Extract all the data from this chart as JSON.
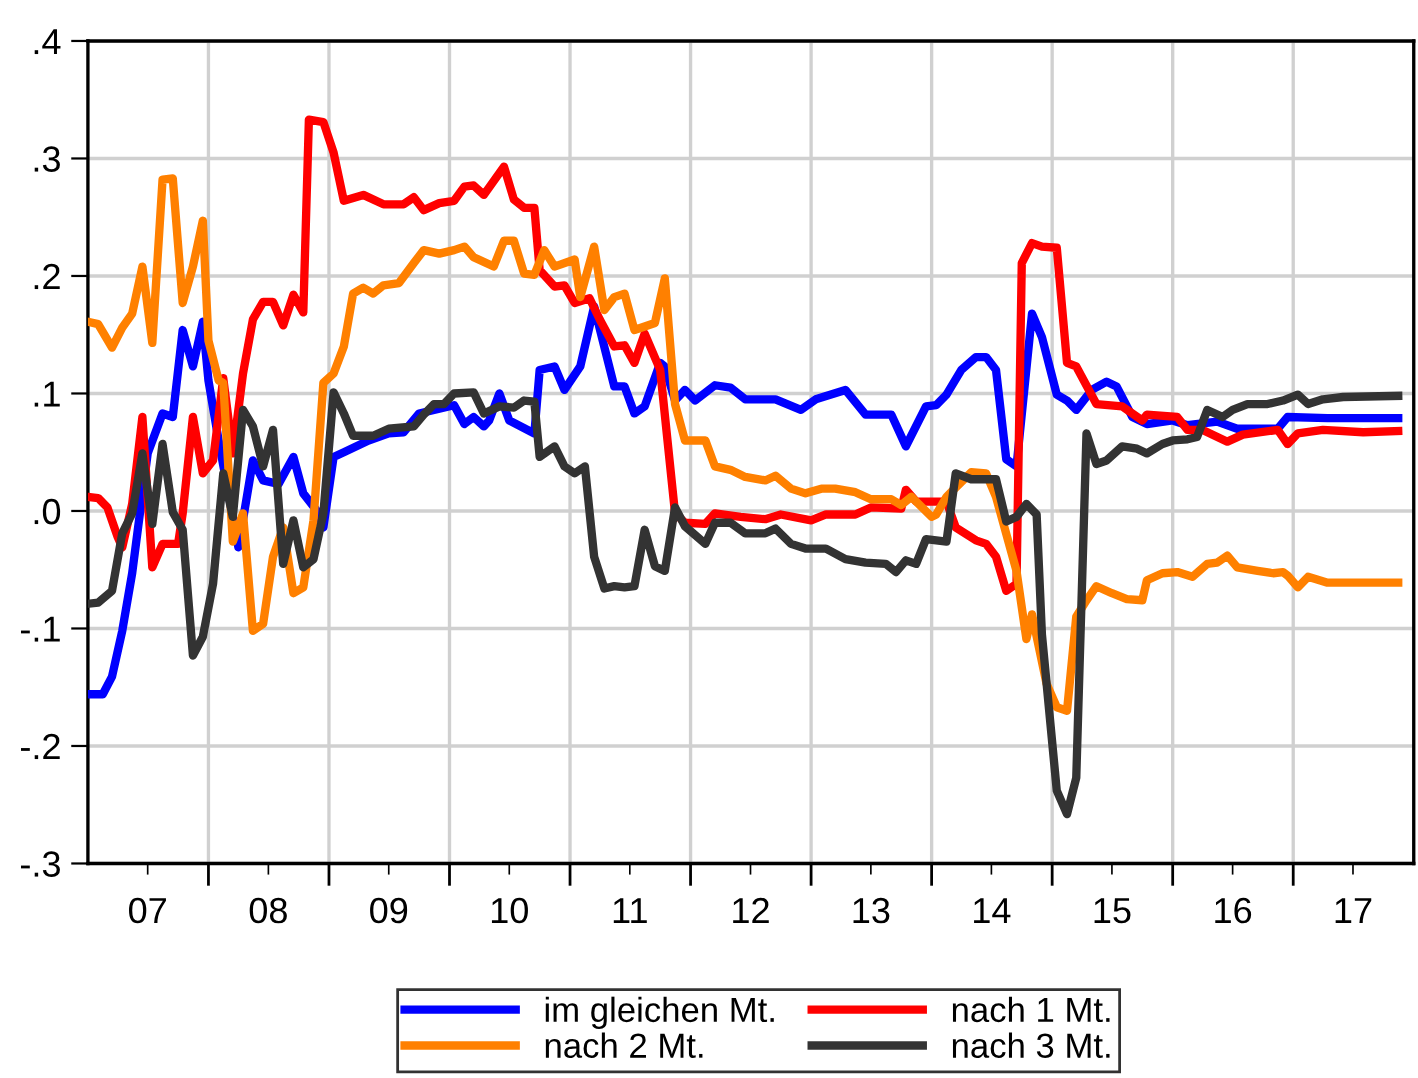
{
  "chart_data": {
    "type": "line",
    "xlim": [
      "2007-01-01",
      "2018-01-01"
    ],
    "ylim": [
      -0.3,
      0.4
    ],
    "xticks": [
      {
        "value": "2007-07-01",
        "label": "07"
      },
      {
        "value": "2008-01-01",
        "label": null
      },
      {
        "value": "2008-07-01",
        "label": "08"
      },
      {
        "value": "2009-01-01",
        "label": null
      },
      {
        "value": "2009-07-01",
        "label": "09"
      },
      {
        "value": "2010-01-01",
        "label": null
      },
      {
        "value": "2010-07-01",
        "label": "10"
      },
      {
        "value": "2011-01-01",
        "label": null
      },
      {
        "value": "2011-07-01",
        "label": "11"
      },
      {
        "value": "2012-01-01",
        "label": null
      },
      {
        "value": "2012-07-01",
        "label": "12"
      },
      {
        "value": "2013-01-01",
        "label": null
      },
      {
        "value": "2013-07-01",
        "label": "13"
      },
      {
        "value": "2014-01-01",
        "label": null
      },
      {
        "value": "2014-07-01",
        "label": "14"
      },
      {
        "value": "2015-01-01",
        "label": null
      },
      {
        "value": "2015-07-01",
        "label": "15"
      },
      {
        "value": "2016-01-01",
        "label": null
      },
      {
        "value": "2016-07-01",
        "label": "16"
      },
      {
        "value": "2017-01-01",
        "label": null
      },
      {
        "value": "2017-07-01",
        "label": "17"
      }
    ],
    "yticks": [
      {
        "value": -0.3,
        "label": "-.3"
      },
      {
        "value": -0.2,
        "label": "-.2"
      },
      {
        "value": -0.1,
        "label": "-.1"
      },
      {
        "value": 0,
        "label": ".0"
      },
      {
        "value": 0.1,
        "label": ".1"
      },
      {
        "value": 0.2,
        "label": ".2"
      },
      {
        "value": 0.3,
        "label": ".3"
      },
      {
        "value": 0.4,
        "label": ".4"
      }
    ],
    "grid": true,
    "legend": "bottom",
    "line_style": "solid",
    "marker": "none",
    "series": [
      {
        "name": "im gleichen Mt.",
        "color": "#0000ff",
        "x": [
          "2007-01-01",
          "2007-02-15",
          "2007-03-15",
          "2007-04-15",
          "2007-05-15",
          "2007-07-01",
          "2007-08-15",
          "2007-09-15",
          "2007-10-15",
          "2007-11-15",
          "2007-12-15",
          "2008-01-01",
          "2008-02-01",
          "2008-04-01",
          "2008-05-15",
          "2008-06-15",
          "2008-08-01",
          "2008-09-15",
          "2008-10-15",
          "2008-12-01",
          "2008-12-15",
          "2009-01-15",
          "2009-02-15",
          "2009-05-01",
          "2009-07-01",
          "2009-08-15",
          "2009-10-01",
          "2009-12-01",
          "2010-01-15",
          "2010-02-15",
          "2010-03-15",
          "2010-04-15",
          "2010-05-01",
          "2010-06-01",
          "2010-07-01",
          "2010-09-15",
          "2010-10-01",
          "2010-11-15",
          "2010-12-15",
          "2011-02-01",
          "2011-03-15",
          "2011-05-15",
          "2011-06-15",
          "2011-07-15",
          "2011-08-15",
          "2011-10-01",
          "2011-10-15",
          "2011-11-15",
          "2011-12-15",
          "2012-01-15",
          "2012-03-15",
          "2012-05-01",
          "2012-06-15",
          "2012-09-15",
          "2012-12-01",
          "2013-01-15",
          "2013-04-15",
          "2013-06-15",
          "2013-09-01",
          "2013-10-15",
          "2013-12-15",
          "2014-01-15",
          "2014-02-15",
          "2014-04-01",
          "2014-05-15",
          "2014-06-15",
          "2014-07-15",
          "2014-08-15",
          "2014-09-15",
          "2014-11-01",
          "2014-12-01",
          "2015-01-15",
          "2015-02-15",
          "2015-03-15",
          "2015-05-01",
          "2015-06-15",
          "2015-07-15",
          "2015-09-01",
          "2015-10-15",
          "2016-01-01",
          "2016-02-15",
          "2016-05-15",
          "2016-07-15",
          "2016-11-15",
          "2016-12-15",
          "2017-04-15",
          "2017-11-15"
        ],
        "values": [
          -0.156,
          -0.156,
          -0.141,
          -0.102,
          -0.053,
          0.049,
          0.083,
          0.08,
          0.154,
          0.123,
          0.161,
          0.111,
          0.06,
          -0.031,
          0.043,
          0.026,
          0.023,
          0.046,
          0.015,
          -0.002,
          -0.014,
          0.046,
          0.05,
          0.06,
          0.066,
          0.067,
          0.083,
          0.087,
          0.09,
          0.074,
          0.08,
          0.072,
          0.077,
          0.1,
          0.077,
          0.066,
          0.12,
          0.123,
          0.103,
          0.123,
          0.174,
          0.106,
          0.106,
          0.083,
          0.089,
          0.126,
          0.123,
          0.094,
          0.103,
          0.094,
          0.107,
          0.105,
          0.095,
          0.095,
          0.086,
          0.095,
          0.103,
          0.082,
          0.082,
          0.055,
          0.089,
          0.09,
          0.099,
          0.12,
          0.131,
          0.131,
          0.12,
          0.044,
          0.038,
          0.168,
          0.148,
          0.099,
          0.094,
          0.086,
          0.103,
          0.11,
          0.106,
          0.08,
          0.074,
          0.077,
          0.073,
          0.076,
          0.07,
          0.07,
          0.08,
          0.079,
          0.079
        ]
      },
      {
        "name": "nach 1 Mt.",
        "color": "#ff0000",
        "x": [
          "2007-01-01",
          "2007-02-01",
          "2007-03-01",
          "2007-04-01",
          "2007-04-15",
          "2007-05-15",
          "2007-06-15",
          "2007-07-15",
          "2007-08-15",
          "2007-10-01",
          "2007-10-15",
          "2007-11-15",
          "2007-12-15",
          "2008-01-15",
          "2008-02-15",
          "2008-03-15",
          "2008-04-15",
          "2008-05-15",
          "2008-06-15",
          "2008-07-15",
          "2008-08-15",
          "2008-09-15",
          "2008-10-15",
          "2008-11-01",
          "2008-12-15",
          "2009-01-15",
          "2009-02-15",
          "2009-04-15",
          "2009-06-15",
          "2009-08-15",
          "2009-09-15",
          "2009-10-15",
          "2009-12-01",
          "2010-01-15",
          "2010-02-15",
          "2010-03-15",
          "2010-04-15",
          "2010-06-15",
          "2010-07-15",
          "2010-08-15",
          "2010-09-15",
          "2010-10-01",
          "2010-11-15",
          "2010-12-15",
          "2011-01-15",
          "2011-03-01",
          "2011-04-01",
          "2011-05-15",
          "2011-06-15",
          "2011-07-15",
          "2011-08-15",
          "2011-10-01",
          "2011-11-15",
          "2011-12-15",
          "2012-02-15",
          "2012-03-15",
          "2012-06-01",
          "2012-08-15",
          "2012-10-01",
          "2013-01-01",
          "2013-02-15",
          "2013-05-15",
          "2013-07-01",
          "2013-10-01",
          "2013-10-15",
          "2013-11-15",
          "2014-01-15",
          "2014-02-15",
          "2014-03-15",
          "2014-05-15",
          "2014-06-15",
          "2014-07-15",
          "2014-08-15",
          "2014-09-15",
          "2014-10-01",
          "2014-11-01",
          "2014-12-01",
          "2015-01-15",
          "2015-02-15",
          "2015-03-15",
          "2015-05-15",
          "2015-08-01",
          "2015-10-01",
          "2015-10-15",
          "2016-01-15",
          "2016-02-15",
          "2016-04-01",
          "2016-06-15",
          "2016-08-01",
          "2016-11-15",
          "2016-12-15",
          "2017-01-15",
          "2017-04-01",
          "2017-08-01",
          "2017-11-15"
        ],
        "values": [
          0.012,
          0.011,
          0.003,
          -0.022,
          -0.031,
          0.006,
          0.08,
          -0.048,
          -0.028,
          -0.028,
          -0.002,
          0.08,
          0.032,
          0.043,
          0.113,
          0.049,
          0.117,
          0.163,
          0.178,
          0.178,
          0.158,
          0.184,
          0.169,
          0.333,
          0.331,
          0.305,
          0.264,
          0.269,
          0.261,
          0.261,
          0.267,
          0.256,
          0.262,
          0.264,
          0.276,
          0.277,
          0.269,
          0.293,
          0.265,
          0.258,
          0.258,
          0.205,
          0.191,
          0.192,
          0.177,
          0.181,
          0.163,
          0.14,
          0.141,
          0.126,
          0.151,
          0.12,
          -0.002,
          -0.01,
          -0.011,
          -0.002,
          -0.005,
          -0.007,
          -0.003,
          -0.008,
          -0.003,
          -0.003,
          0.003,
          0.002,
          0.018,
          0.008,
          0.008,
          0.008,
          -0.014,
          -0.025,
          -0.028,
          -0.039,
          -0.068,
          -0.062,
          0.211,
          0.228,
          0.225,
          0.224,
          0.126,
          0.123,
          0.091,
          0.089,
          0.077,
          0.082,
          0.08,
          0.069,
          0.069,
          0.059,
          0.065,
          0.069,
          0.057,
          0.066,
          0.069,
          0.067,
          0.068
        ]
      },
      {
        "name": "nach 2 Mt.",
        "color": "#ff8000",
        "x": [
          "2007-01-01",
          "2007-02-01",
          "2007-03-15",
          "2007-04-15",
          "2007-05-15",
          "2007-06-15",
          "2007-07-15",
          "2007-08-15",
          "2007-09-15",
          "2007-10-15",
          "2007-11-15",
          "2007-12-15",
          "2008-01-01",
          "2008-02-01",
          "2008-02-15",
          "2008-03-15",
          "2008-04-15",
          "2008-05-15",
          "2008-06-15",
          "2008-07-15",
          "2008-08-15",
          "2008-09-15",
          "2008-10-15",
          "2008-11-15",
          "2008-12-15",
          "2009-01-15",
          "2009-02-15",
          "2009-03-15",
          "2009-04-15",
          "2009-05-15",
          "2009-06-15",
          "2009-08-01",
          "2009-09-15",
          "2009-10-15",
          "2009-12-01",
          "2010-01-15",
          "2010-02-15",
          "2010-03-15",
          "2010-05-15",
          "2010-06-15",
          "2010-07-15",
          "2010-08-15",
          "2010-09-15",
          "2010-10-15",
          "2010-11-15",
          "2011-01-15",
          "2011-02-01",
          "2011-03-15",
          "2011-04-15",
          "2011-05-15",
          "2011-06-15",
          "2011-07-15",
          "2011-09-15",
          "2011-10-15",
          "2011-11-15",
          "2011-12-15",
          "2012-02-15",
          "2012-03-15",
          "2012-05-01",
          "2012-06-15",
          "2012-08-15",
          "2012-09-15",
          "2012-11-01",
          "2012-12-15",
          "2013-02-01",
          "2013-03-15",
          "2013-05-15",
          "2013-07-01",
          "2013-09-01",
          "2013-10-01",
          "2013-11-01",
          "2014-01-01",
          "2014-01-15",
          "2014-02-15",
          "2014-03-15",
          "2014-05-01",
          "2014-06-15",
          "2014-07-15",
          "2014-09-15",
          "2014-10-15",
          "2014-11-01",
          "2014-12-15",
          "2015-01-15",
          "2015-02-15",
          "2015-03-15",
          "2015-04-15",
          "2015-05-15",
          "2015-07-01",
          "2015-08-15",
          "2015-10-01",
          "2015-10-15",
          "2015-12-01",
          "2016-01-15",
          "2016-03-01",
          "2016-04-15",
          "2016-05-15",
          "2016-06-15",
          "2016-07-15",
          "2016-09-15",
          "2016-11-01",
          "2016-12-01",
          "2016-12-15",
          "2017-01-15",
          "2017-02-15",
          "2017-04-15",
          "2017-11-15"
        ],
        "values": [
          0.161,
          0.159,
          0.139,
          0.156,
          0.168,
          0.208,
          0.143,
          0.282,
          0.283,
          0.177,
          0.208,
          0.247,
          0.145,
          0.111,
          0.109,
          -0.026,
          -0.002,
          -0.102,
          -0.096,
          -0.039,
          -0.014,
          -0.07,
          -0.065,
          -0.008,
          0.109,
          0.117,
          0.14,
          0.185,
          0.19,
          0.185,
          0.192,
          0.194,
          0.211,
          0.222,
          0.219,
          0.222,
          0.225,
          0.216,
          0.208,
          0.23,
          0.23,
          0.202,
          0.201,
          0.222,
          0.208,
          0.214,
          0.182,
          0.225,
          0.171,
          0.182,
          0.185,
          0.154,
          0.16,
          0.198,
          0.091,
          0.06,
          0.06,
          0.038,
          0.035,
          0.029,
          0.026,
          0.03,
          0.019,
          0.015,
          0.019,
          0.019,
          0.016,
          0.01,
          0.01,
          0.005,
          0.012,
          -0.005,
          -0.003,
          0.012,
          0.02,
          0.033,
          0.032,
          0.012,
          -0.051,
          -0.109,
          -0.088,
          -0.147,
          -0.167,
          -0.17,
          -0.09,
          -0.076,
          -0.064,
          -0.07,
          -0.075,
          -0.076,
          -0.059,
          -0.053,
          -0.052,
          -0.056,
          -0.045,
          -0.044,
          -0.038,
          -0.048,
          -0.051,
          -0.053,
          -0.052,
          -0.055,
          -0.065,
          -0.056,
          -0.061,
          -0.061
        ]
      },
      {
        "name": "nach 3 Mt.",
        "color": "#333333",
        "x": [
          "2007-01-01",
          "2007-02-01",
          "2007-03-15",
          "2007-04-15",
          "2007-05-15",
          "2007-06-15",
          "2007-07-15",
          "2007-08-15",
          "2007-09-15",
          "2007-10-15",
          "2007-11-15",
          "2007-12-15",
          "2008-01-15",
          "2008-02-15",
          "2008-03-15",
          "2008-04-15",
          "2008-05-15",
          "2008-06-15",
          "2008-07-15",
          "2008-08-15",
          "2008-09-15",
          "2008-10-15",
          "2008-11-15",
          "2008-12-15",
          "2009-01-15",
          "2009-02-15",
          "2009-03-15",
          "2009-05-15",
          "2009-07-01",
          "2009-09-15",
          "2009-10-15",
          "2009-11-15",
          "2009-12-15",
          "2010-01-15",
          "2010-03-15",
          "2010-04-15",
          "2010-06-01",
          "2010-07-15",
          "2010-08-15",
          "2010-09-15",
          "2010-10-01",
          "2010-11-15",
          "2010-12-15",
          "2011-01-15",
          "2011-02-15",
          "2011-03-15",
          "2011-04-15",
          "2011-05-15",
          "2011-06-15",
          "2011-07-15",
          "2011-08-15",
          "2011-09-15",
          "2011-10-15",
          "2011-11-15",
          "2011-12-15",
          "2012-02-15",
          "2012-03-15",
          "2012-05-01",
          "2012-06-15",
          "2012-08-15",
          "2012-09-15",
          "2012-11-01",
          "2012-12-15",
          "2013-02-15",
          "2013-04-15",
          "2013-06-15",
          "2013-08-15",
          "2013-09-15",
          "2013-10-15",
          "2013-11-15",
          "2013-12-15",
          "2014-02-15",
          "2014-03-15",
          "2014-05-01",
          "2014-07-15",
          "2014-08-15",
          "2014-09-15",
          "2014-10-15",
          "2014-11-15",
          "2014-12-01",
          "2015-01-15",
          "2015-02-15",
          "2015-03-15",
          "2015-04-15",
          "2015-05-15",
          "2015-06-15",
          "2015-08-01",
          "2015-09-15",
          "2015-10-15",
          "2015-12-01",
          "2016-01-01",
          "2016-02-15",
          "2016-03-15",
          "2016-04-15",
          "2016-06-01",
          "2016-07-01",
          "2016-08-15",
          "2016-10-15",
          "2016-12-01",
          "2017-01-15",
          "2017-02-15",
          "2017-04-01",
          "2017-06-01",
          "2017-11-15"
        ],
        "values": [
          -0.079,
          -0.078,
          -0.068,
          -0.019,
          -0.002,
          0.049,
          -0.011,
          0.057,
          -0.001,
          -0.016,
          -0.123,
          -0.107,
          -0.062,
          0.032,
          -0.005,
          0.086,
          0.072,
          0.038,
          0.069,
          -0.045,
          -0.008,
          -0.048,
          -0.041,
          -0.002,
          0.101,
          0.083,
          0.064,
          0.064,
          0.07,
          0.072,
          0.082,
          0.091,
          0.091,
          0.1,
          0.101,
          0.083,
          0.089,
          0.088,
          0.094,
          0.093,
          0.046,
          0.055,
          0.038,
          0.032,
          0.038,
          -0.039,
          -0.066,
          -0.064,
          -0.065,
          -0.064,
          -0.016,
          -0.047,
          -0.051,
          0.003,
          -0.013,
          -0.028,
          -0.01,
          -0.01,
          -0.019,
          -0.019,
          -0.015,
          -0.028,
          -0.032,
          -0.032,
          -0.041,
          -0.044,
          -0.045,
          -0.052,
          -0.042,
          -0.045,
          -0.024,
          -0.026,
          0.032,
          0.027,
          0.027,
          -0.009,
          -0.005,
          0.006,
          -0.003,
          -0.105,
          -0.238,
          -0.258,
          -0.227,
          0.066,
          0.04,
          0.043,
          0.055,
          0.053,
          0.049,
          0.057,
          0.06,
          0.061,
          0.063,
          0.086,
          0.08,
          0.086,
          0.091,
          0.091,
          0.094,
          0.099,
          0.091,
          0.095,
          0.097,
          0.098
        ]
      }
    ]
  }
}
